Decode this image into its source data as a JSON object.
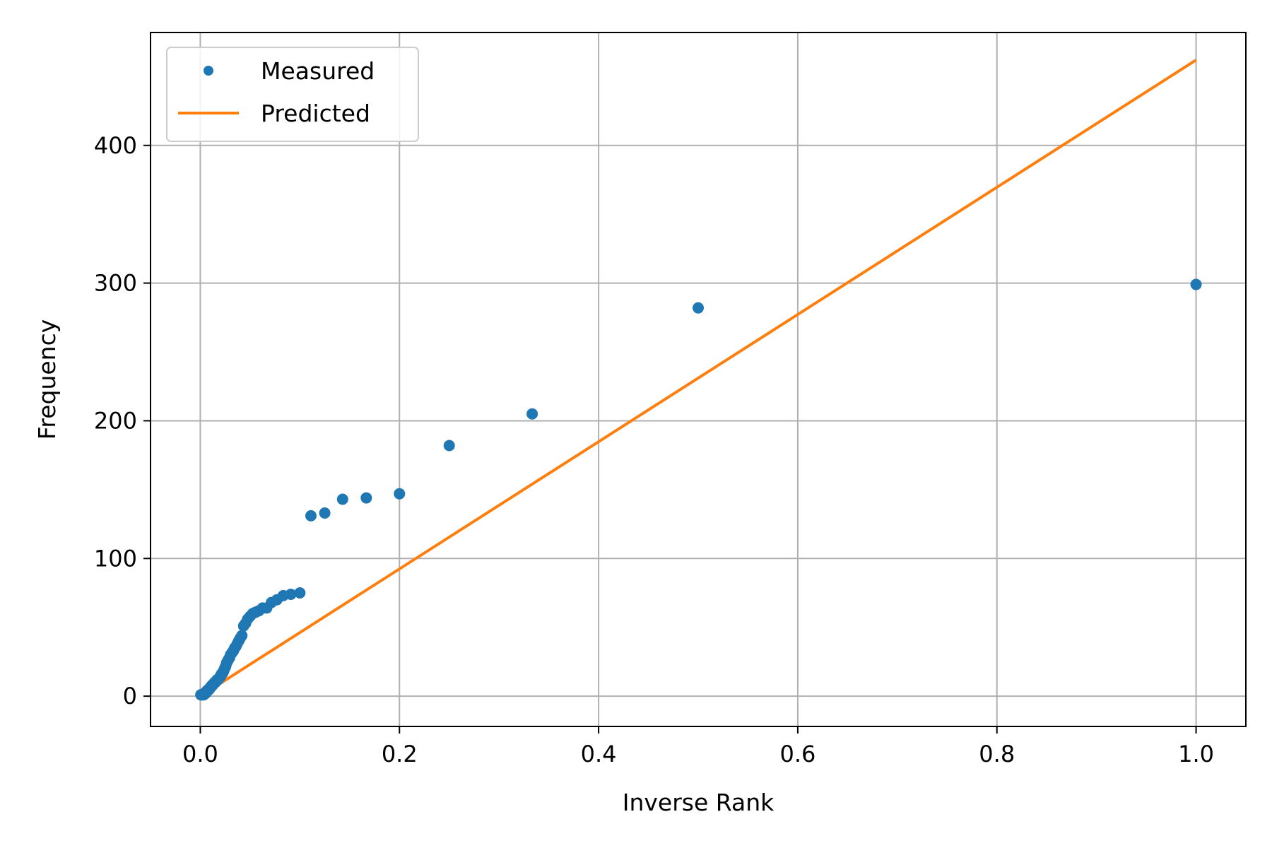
{
  "chart_data": {
    "type": "scatter",
    "title": "",
    "xlabel": "Inverse Rank",
    "ylabel": "Frequency",
    "xlim": [
      -0.05,
      1.05
    ],
    "ylim": [
      -22,
      482
    ],
    "x_ticks": [
      0.0,
      0.2,
      0.4,
      0.6,
      0.8,
      1.0
    ],
    "x_tick_labels": [
      "0.0",
      "0.2",
      "0.4",
      "0.6",
      "0.8",
      "1.0"
    ],
    "y_ticks": [
      0,
      100,
      200,
      300,
      400
    ],
    "y_tick_labels": [
      "0",
      "100",
      "200",
      "300",
      "400"
    ],
    "grid": true,
    "legend_position": "upper-left",
    "colors": {
      "measured": "#1f77b4",
      "predicted": "#ff7f0e",
      "grid": "#b0b0b0",
      "axes": "#000000"
    },
    "series": [
      {
        "name": "Measured",
        "kind": "scatter",
        "x": [
          1.0,
          0.5,
          0.3333,
          0.25,
          0.2,
          0.1667,
          0.1429,
          0.125,
          0.1111,
          0.1,
          0.0909,
          0.0833,
          0.0769,
          0.0714,
          0.0667,
          0.0625,
          0.0588,
          0.0556,
          0.0526,
          0.05,
          0.0476,
          0.0455,
          0.0435,
          0.0417,
          0.04,
          0.0385,
          0.037,
          0.0357,
          0.0345,
          0.0333,
          0.0323,
          0.0313,
          0.0303,
          0.0294,
          0.0286,
          0.0278,
          0.027,
          0.0263,
          0.0256,
          0.025,
          0.0244,
          0.0238,
          0.0233,
          0.0227,
          0.0222,
          0.0217,
          0.0213,
          0.0208,
          0.0204,
          0.02,
          0.0189,
          0.0179,
          0.0169,
          0.0161,
          0.0152,
          0.0143,
          0.0133,
          0.0125,
          0.0118,
          0.0111,
          0.0105,
          0.01,
          0.0091,
          0.0083,
          0.0077,
          0.0071,
          0.0067,
          0.0063,
          0.0059,
          0.0056,
          0.0053,
          0.005,
          0.0045,
          0.004,
          0.0035,
          0.003,
          0.0025,
          0.002,
          0.0015,
          0.001,
          0.0005
        ],
        "y": [
          299,
          282,
          205,
          182,
          147,
          144,
          143,
          133,
          131,
          75,
          74,
          73,
          70,
          68,
          64,
          64,
          62,
          61,
          60,
          58,
          56,
          53,
          51,
          44,
          42,
          40,
          38,
          36,
          35,
          33,
          32,
          31,
          30,
          28,
          27,
          26,
          25,
          24,
          22,
          21,
          20,
          19,
          18,
          17,
          17,
          16,
          16,
          15,
          15,
          14,
          13,
          12,
          12,
          11,
          10,
          10,
          9,
          8,
          8,
          7,
          7,
          6,
          5,
          5,
          4,
          4,
          4,
          3,
          3,
          3,
          2,
          2,
          2,
          2,
          1,
          1,
          1,
          1,
          1,
          1,
          1
        ]
      },
      {
        "name": "Predicted",
        "kind": "line",
        "x": [
          0.0,
          1.0
        ],
        "y": [
          0,
          462
        ]
      }
    ]
  }
}
